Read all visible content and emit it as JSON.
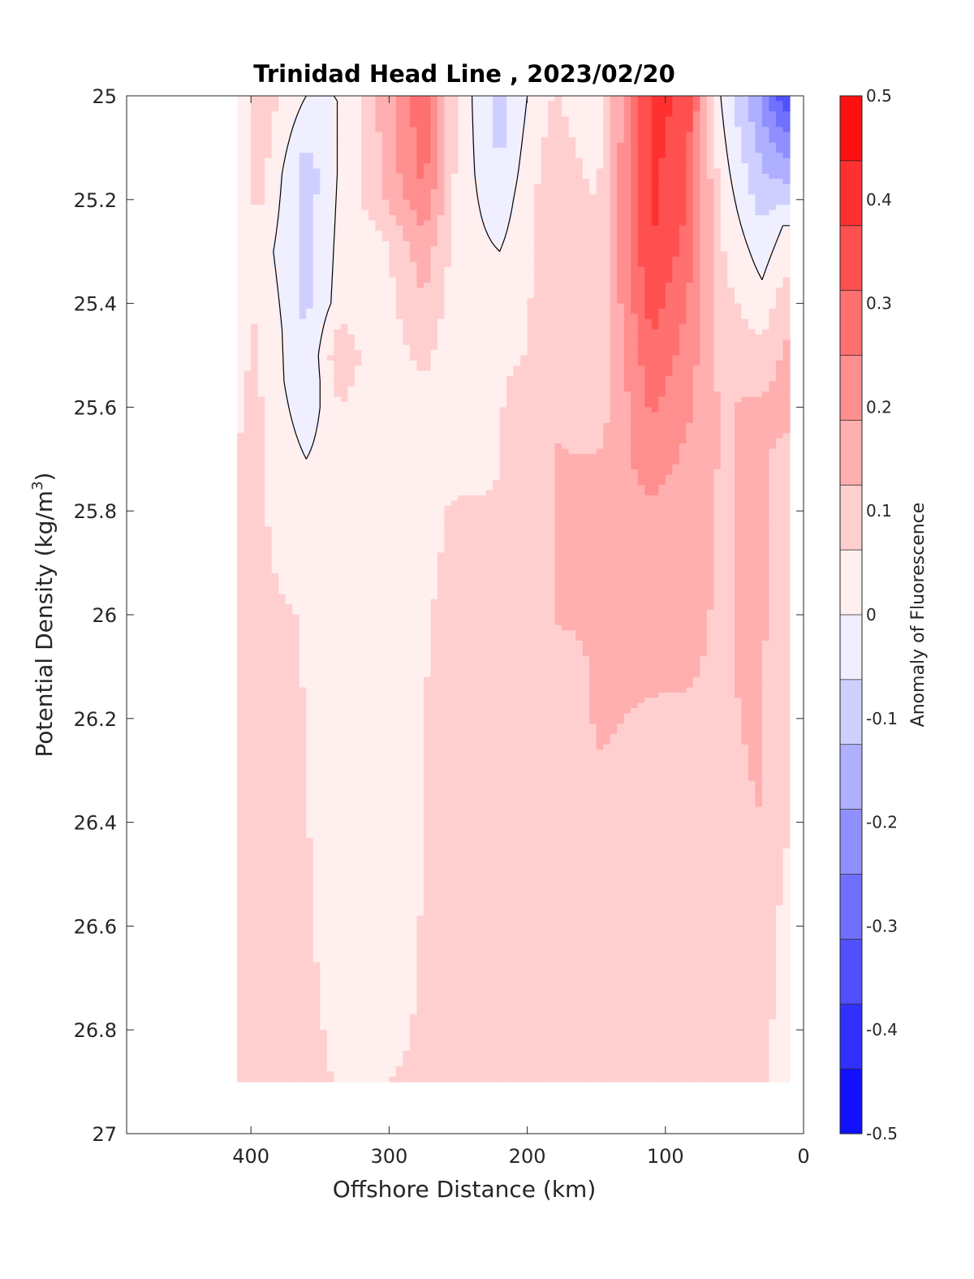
{
  "chart_data": {
    "type": "contourf",
    "title": "Trinidad Head Line , 2023/02/20",
    "xlabel": "Offshore Distance (km)",
    "ylabel": "Potential Density (kg/m",
    "ylabel_superscript": "3",
    "ylabel_suffix": ")",
    "colorbar_label": "Anomaly of Fluorescence",
    "xlim": [
      490,
      0
    ],
    "ylim": [
      25,
      27
    ],
    "y_reversed": true,
    "x_reversed": true,
    "x_ticks": [
      400,
      300,
      200,
      100,
      0
    ],
    "y_ticks": [
      25,
      25.2,
      25.4,
      25.6,
      25.8,
      26,
      26.2,
      26.4,
      26.6,
      26.8,
      27
    ],
    "colorbar_ticks": [
      0.5,
      0.4,
      0.3,
      0.2,
      0.1,
      0,
      -0.1,
      -0.2,
      -0.3,
      -0.4,
      -0.5
    ],
    "colorbar_range": [
      -0.5,
      0.5
    ],
    "colorbar_levels": 16,
    "colormap": "blue-white-red",
    "colors": {
      "neg_max": "#0000ff",
      "zero": "#ffffff",
      "pos_max": "#ff0000"
    },
    "data_extent": {
      "x": [
        410,
        10
      ],
      "y": [
        25,
        26.9
      ]
    },
    "columns": [
      {
        "x": 410,
        "profile": [
          [
            25.0,
            0.0
          ],
          [
            25.3,
            0.0
          ],
          [
            25.55,
            0.06
          ],
          [
            26.9,
            0.07
          ]
        ]
      },
      {
        "x": 395,
        "profile": [
          [
            25.0,
            0.11
          ],
          [
            25.15,
            0.1
          ],
          [
            25.3,
            0.04
          ],
          [
            25.45,
            0.07
          ],
          [
            26.9,
            0.08
          ]
        ]
      },
      {
        "x": 360,
        "profile": [
          [
            25.0,
            0.0
          ],
          [
            25.15,
            -0.1
          ],
          [
            25.35,
            -0.08
          ],
          [
            25.55,
            -0.06
          ],
          [
            25.7,
            0.0
          ],
          [
            26.0,
            0.06
          ],
          [
            26.9,
            0.07
          ]
        ]
      },
      {
        "x": 335,
        "profile": [
          [
            25.0,
            0.0
          ],
          [
            25.4,
            0.03
          ],
          [
            25.5,
            0.12
          ],
          [
            25.6,
            0.06
          ],
          [
            25.85,
            0.02
          ],
          [
            26.9,
            0.06
          ]
        ]
      },
      {
        "x": 310,
        "profile": [
          [
            25.0,
            0.12
          ],
          [
            25.2,
            0.1
          ],
          [
            25.3,
            0.02
          ],
          [
            26.5,
            0.0
          ],
          [
            26.9,
            0.06
          ]
        ]
      },
      {
        "x": 275,
        "profile": [
          [
            25.0,
            0.3
          ],
          [
            25.15,
            0.27
          ],
          [
            25.3,
            0.16
          ],
          [
            25.45,
            0.1
          ],
          [
            25.6,
            0.04
          ],
          [
            26.0,
            0.06
          ],
          [
            26.9,
            0.07
          ]
        ]
      },
      {
        "x": 250,
        "profile": [
          [
            25.0,
            0.05
          ],
          [
            25.3,
            0.03
          ],
          [
            25.55,
            0.0
          ],
          [
            25.8,
            0.07
          ],
          [
            26.9,
            0.08
          ]
        ]
      },
      {
        "x": 220,
        "profile": [
          [
            25.0,
            -0.1
          ],
          [
            25.15,
            -0.06
          ],
          [
            25.3,
            0.0
          ],
          [
            25.5,
            0.06
          ],
          [
            26.9,
            0.08
          ]
        ]
      },
      {
        "x": 200,
        "profile": [
          [
            25.0,
            0.0
          ],
          [
            25.2,
            0.04
          ],
          [
            25.6,
            0.07
          ],
          [
            26.9,
            0.08
          ]
        ]
      },
      {
        "x": 180,
        "profile": [
          [
            25.0,
            0.07
          ],
          [
            25.2,
            0.12
          ],
          [
            26.0,
            0.13
          ],
          [
            26.2,
            0.08
          ],
          [
            26.9,
            0.08
          ]
        ]
      },
      {
        "x": 150,
        "profile": [
          [
            25.0,
            0.0
          ],
          [
            25.2,
            0.06
          ],
          [
            25.6,
            0.08
          ],
          [
            25.7,
            0.13
          ],
          [
            26.2,
            0.13
          ],
          [
            26.9,
            0.08
          ]
        ]
      },
      {
        "x": 110,
        "profile": [
          [
            25.0,
            0.4
          ],
          [
            25.3,
            0.38
          ],
          [
            25.5,
            0.3
          ],
          [
            25.7,
            0.22
          ],
          [
            25.85,
            0.16
          ],
          [
            26.2,
            0.12
          ],
          [
            26.9,
            0.08
          ]
        ]
      },
      {
        "x": 85,
        "profile": [
          [
            25.0,
            0.36
          ],
          [
            25.2,
            0.32
          ],
          [
            25.45,
            0.24
          ],
          [
            25.8,
            0.15
          ],
          [
            26.5,
            0.1
          ],
          [
            26.9,
            0.08
          ]
        ]
      },
      {
        "x": 60,
        "profile": [
          [
            25.0,
            0.0
          ],
          [
            25.3,
            0.07
          ],
          [
            25.6,
            0.12
          ],
          [
            26.2,
            0.12
          ],
          [
            26.9,
            0.08
          ]
        ]
      },
      {
        "x": 30,
        "profile": [
          [
            25.0,
            -0.2
          ],
          [
            25.15,
            -0.12
          ],
          [
            25.3,
            -0.03
          ],
          [
            25.5,
            0.08
          ],
          [
            25.6,
            0.14
          ],
          [
            26.3,
            0.13
          ],
          [
            26.9,
            0.1
          ]
        ]
      },
      {
        "x": 15,
        "profile": [
          [
            25.0,
            -0.35
          ],
          [
            25.15,
            -0.15
          ],
          [
            25.25,
            0.0
          ],
          [
            25.45,
            0.12
          ],
          [
            25.6,
            0.15
          ],
          [
            25.7,
            0.1
          ],
          [
            26.5,
            0.06
          ],
          [
            26.9,
            0.0
          ]
        ]
      }
    ]
  }
}
